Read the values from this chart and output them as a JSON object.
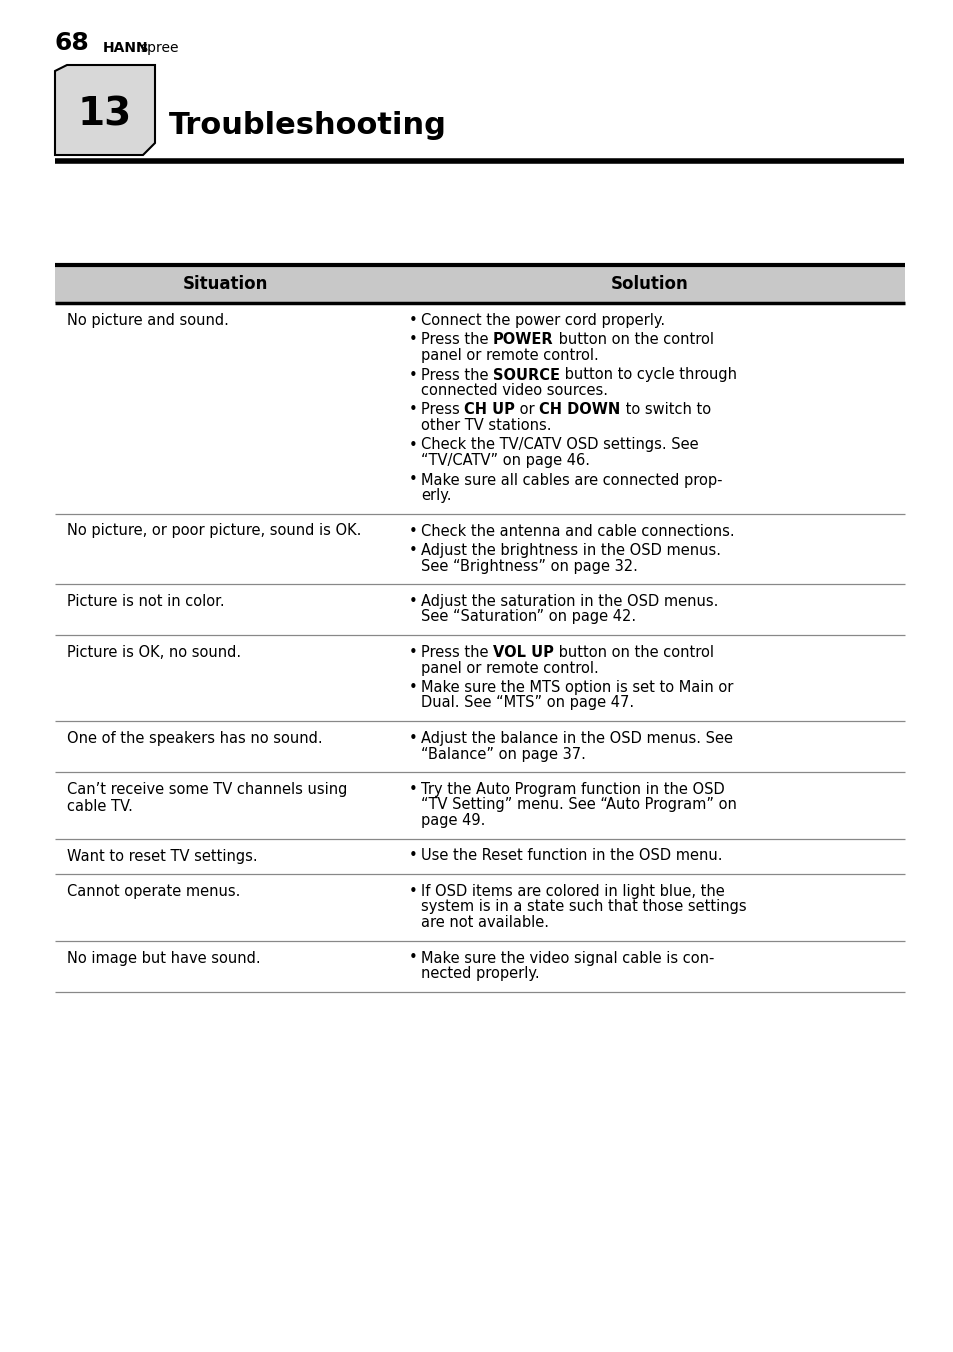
{
  "page_bg": "#ffffff",
  "chapter_num": "13",
  "chapter_title": "Troubleshooting",
  "col1_header": "Situation",
  "col2_header": "Solution",
  "row_data": [
    {
      "situation": "No picture and sound.",
      "solutions": [
        [
          [
            "Connect the power cord properly.",
            false
          ]
        ],
        [
          [
            "Press the ",
            false
          ],
          [
            "POWER",
            true
          ],
          [
            " button on the control\npanel or remote control.",
            false
          ]
        ],
        [
          [
            "Press the ",
            false
          ],
          [
            "SOURCE",
            true
          ],
          [
            " button to cycle through\nconnected video sources.",
            false
          ]
        ],
        [
          [
            "Press ",
            false
          ],
          [
            "CH UP",
            true
          ],
          [
            " or ",
            false
          ],
          [
            "CH DOWN",
            true
          ],
          [
            " to switch to\nother TV stations.",
            false
          ]
        ],
        [
          [
            "Check the TV/CATV OSD settings. See\n“TV/CATV” on page 46.",
            false
          ]
        ],
        [
          [
            "Make sure all cables are connected prop-\nerly.",
            false
          ]
        ]
      ]
    },
    {
      "situation": "No picture, or poor picture, sound is OK.",
      "solutions": [
        [
          [
            "Check the antenna and cable connections.",
            false
          ]
        ],
        [
          [
            "Adjust the brightness in the OSD menus.\nSee “Brightness” on page 32.",
            false
          ]
        ]
      ]
    },
    {
      "situation": "Picture is not in color.",
      "solutions": [
        [
          [
            "Adjust the saturation in the OSD menus.\nSee “Saturation” on page 42.",
            false
          ]
        ]
      ]
    },
    {
      "situation": "Picture is OK, no sound.",
      "solutions": [
        [
          [
            "Press the ",
            false
          ],
          [
            "VOL UP",
            true
          ],
          [
            " button on the control\npanel or remote control.",
            false
          ]
        ],
        [
          [
            "Make sure the MTS option is set to Main or\nDual. See “MTS” on page 47.",
            false
          ]
        ]
      ]
    },
    {
      "situation": "One of the speakers has no sound.",
      "solutions": [
        [
          [
            "Adjust the balance in the OSD menus. See\n“Balance” on page 37.",
            false
          ]
        ]
      ]
    },
    {
      "situation": "Can’t receive some TV channels using\ncable TV.",
      "solutions": [
        [
          [
            "Try the Auto Program function in the OSD\n“TV Setting” menu. See “Auto Program” on\npage 49.",
            false
          ]
        ]
      ]
    },
    {
      "situation": "Want to reset TV settings.",
      "solutions": [
        [
          [
            "Use the Reset function in the OSD menu.",
            false
          ]
        ]
      ]
    },
    {
      "situation": "Cannot operate menus.",
      "solutions": [
        [
          [
            "If OSD items are colored in light blue, the\nsystem is in a state such that those settings\nare not available.",
            false
          ]
        ]
      ]
    },
    {
      "situation": "No image but have sound.",
      "solutions": [
        [
          [
            "Make sure the video signal cable is con-\nnected properly.",
            false
          ]
        ]
      ]
    }
  ],
  "footer_page": "68",
  "footer_brand_bold": "HANN",
  "footer_brand_normal": "spree"
}
